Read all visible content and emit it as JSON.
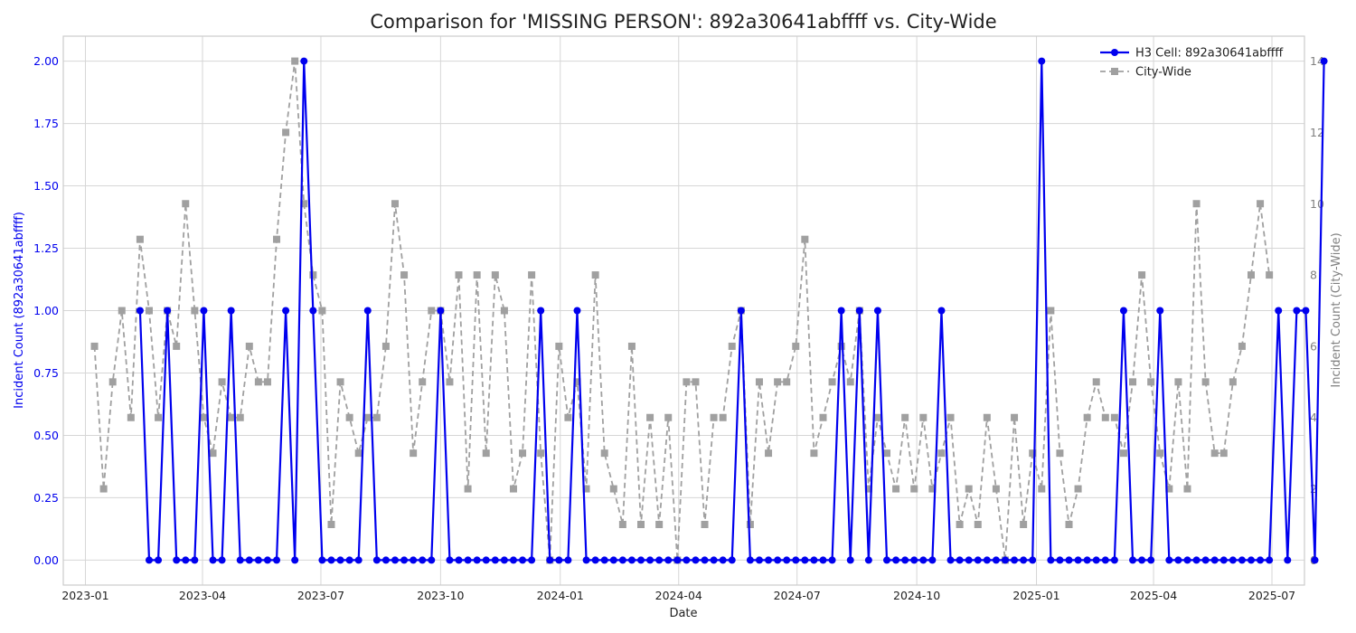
{
  "chart_data": {
    "type": "line",
    "title": "Comparison for 'MISSING PERSON': 892a30641abffff vs. City-Wide",
    "xlabel": "Date",
    "ylabel_left": "Incident Count (892a30641abffff)",
    "ylabel_right": "Incident Count (City-Wide)",
    "ylim_left": [
      -0.1,
      2.1
    ],
    "ylim_right": [
      -0.7,
      14.7
    ],
    "yticks_left": [
      "0.00",
      "0.25",
      "0.50",
      "0.75",
      "1.00",
      "1.25",
      "1.50",
      "1.75",
      "2.00"
    ],
    "yticks_right": [
      "0",
      "2",
      "4",
      "6",
      "8",
      "10",
      "12",
      "14"
    ],
    "xticks": [
      "2023-01",
      "2023-04",
      "2023-07",
      "2023-10",
      "2024-01",
      "2024-04",
      "2024-07",
      "2024-10",
      "2025-01",
      "2025-04",
      "2025-07"
    ],
    "x_start": "2023-01-08",
    "x_step_days": 7,
    "xlim": [
      "2022-12-15",
      "2025-07-26"
    ],
    "grid": true,
    "legend_position": "top-right",
    "series": [
      {
        "name": "H3 Cell: 892a30641abffff",
        "color": "#0000ee",
        "axis": "left",
        "start_index": 5,
        "values": [
          1,
          0,
          0,
          1,
          0,
          0,
          0,
          1,
          0,
          0,
          1,
          0,
          0,
          0,
          0,
          0,
          1,
          0,
          2,
          1,
          0,
          0,
          0,
          0,
          0,
          1,
          0,
          0,
          0,
          0,
          0,
          0,
          0,
          1,
          0,
          0,
          0,
          0,
          0,
          0,
          0,
          0,
          0,
          0,
          1,
          0,
          0,
          0,
          1,
          0,
          0,
          0,
          0,
          0,
          0,
          0,
          0,
          0,
          0,
          0,
          0,
          0,
          0,
          0,
          0,
          0,
          1,
          0,
          0,
          0,
          0,
          0,
          0,
          0,
          0,
          0,
          0,
          1,
          0,
          1,
          0,
          1,
          0,
          0,
          0,
          0,
          0,
          0,
          1,
          0,
          0,
          0,
          0,
          0,
          0,
          0,
          0,
          0,
          0,
          2,
          0,
          0,
          0,
          0,
          0,
          0,
          0,
          0,
          1,
          0,
          0,
          0,
          1,
          0,
          0,
          0,
          0,
          0,
          0,
          0,
          0,
          0,
          0,
          0,
          0,
          1,
          0,
          1,
          1,
          0,
          2
        ]
      },
      {
        "name": "City-Wide",
        "color": "#a0a0a0",
        "axis": "right",
        "start_index": 0,
        "values": [
          6,
          2,
          5,
          7,
          4,
          9,
          7,
          4,
          7,
          6,
          10,
          7,
          4,
          3,
          5,
          4,
          4,
          6,
          5,
          5,
          9,
          12,
          14,
          10,
          8,
          7,
          1,
          5,
          4,
          3,
          4,
          4,
          6,
          10,
          8,
          3,
          5,
          7,
          7,
          5,
          8,
          2,
          8,
          3,
          8,
          7,
          2,
          3,
          8,
          3,
          0,
          6,
          4,
          5,
          2,
          8,
          3,
          2,
          1,
          6,
          1,
          4,
          1,
          4,
          0,
          5,
          5,
          1,
          4,
          4,
          6,
          7,
          1,
          5,
          3,
          5,
          5,
          6,
          9,
          3,
          4,
          5,
          6,
          5,
          7,
          2,
          4,
          3,
          2,
          4,
          2,
          4,
          2,
          3,
          4,
          1,
          2,
          1,
          4,
          2,
          0,
          4,
          1,
          3,
          2,
          7,
          3,
          1,
          2,
          4,
          5,
          4,
          4,
          3,
          5,
          8,
          5,
          3,
          2,
          5,
          2,
          10,
          5,
          3,
          3,
          5,
          6,
          8,
          10,
          8
        ]
      }
    ]
  }
}
